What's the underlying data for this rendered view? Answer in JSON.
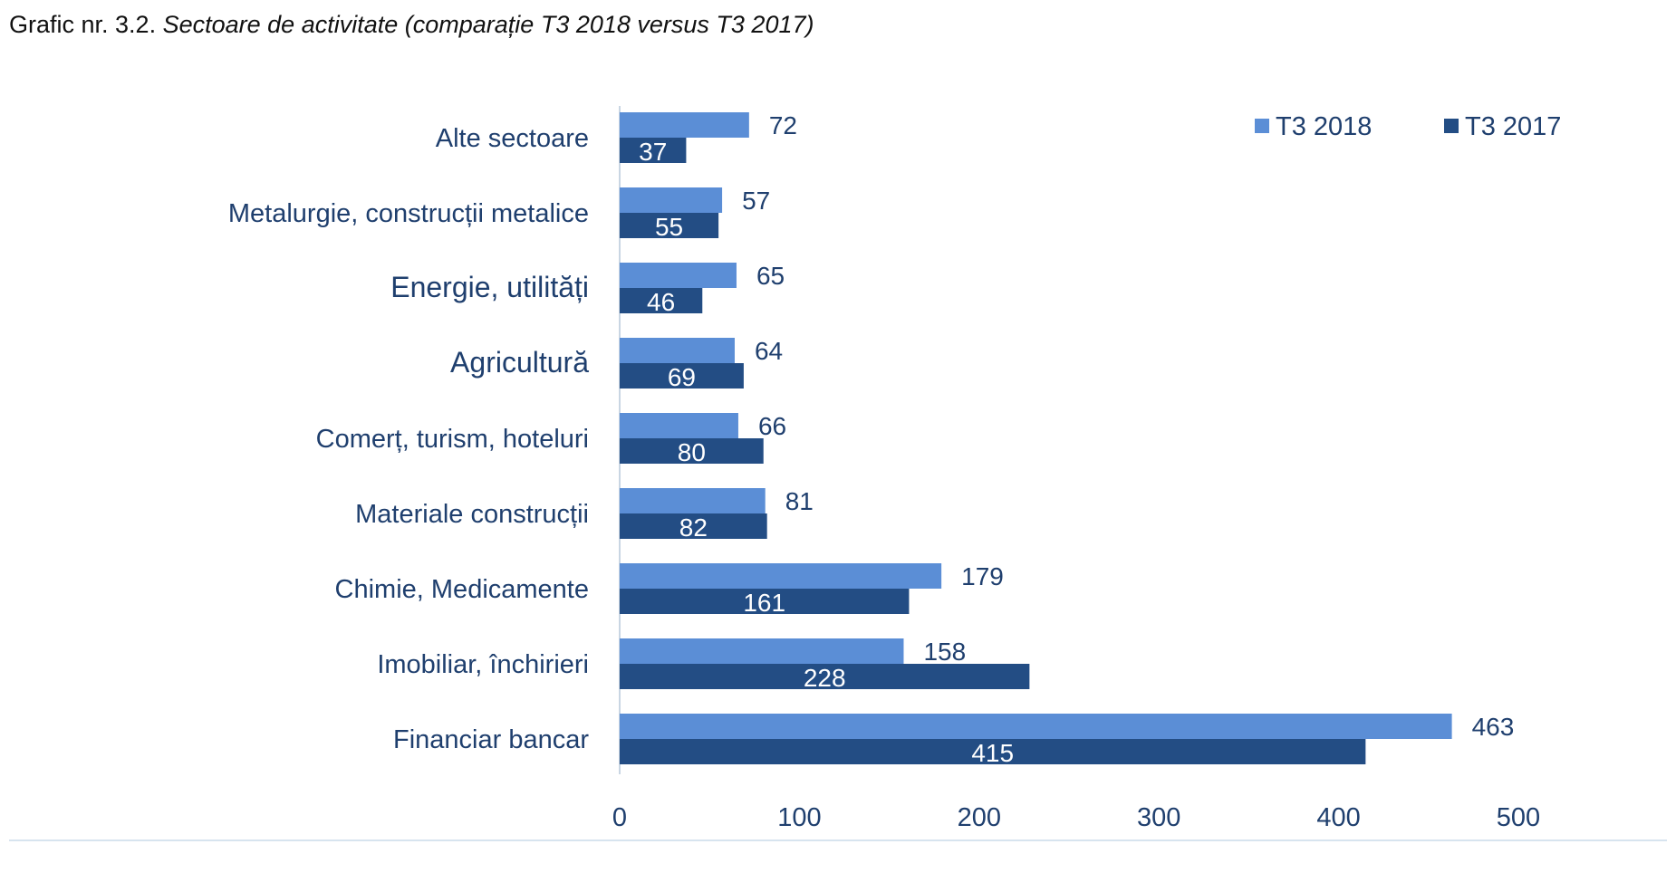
{
  "page_title": {
    "prefix": "Grafic nr. 3.2.",
    "italic": "Sectoare de activitate",
    "suffix": "(comparație T3 2018 versus T3 2017)"
  },
  "colors": {
    "t3_2018": "#5b8ed6",
    "t3_2017": "#234d84",
    "text": "#1f3f6e",
    "axis": "#c9d6e3"
  },
  "chart_data": {
    "type": "bar",
    "orientation": "horizontal",
    "categories": [
      "Alte sectoare",
      "Metalurgie, construcții metalice",
      "Energie, utilități",
      "Agricultură",
      "Comerț, turism, hoteluri",
      "Materiale construcții",
      "Chimie, Medicamente",
      "Imobiliar, închirieri",
      "Financiar bancar"
    ],
    "series": [
      {
        "name": "T3 2018",
        "values": [
          72,
          57,
          65,
          64,
          66,
          81,
          179,
          158,
          463
        ]
      },
      {
        "name": "T3 2017",
        "values": [
          37,
          55,
          46,
          69,
          80,
          82,
          161,
          228,
          415
        ]
      }
    ],
    "xlim": [
      0,
      500
    ],
    "xticks": [
      0,
      100,
      200,
      300,
      400,
      500
    ],
    "legend_position": "top-right",
    "grid": false
  }
}
